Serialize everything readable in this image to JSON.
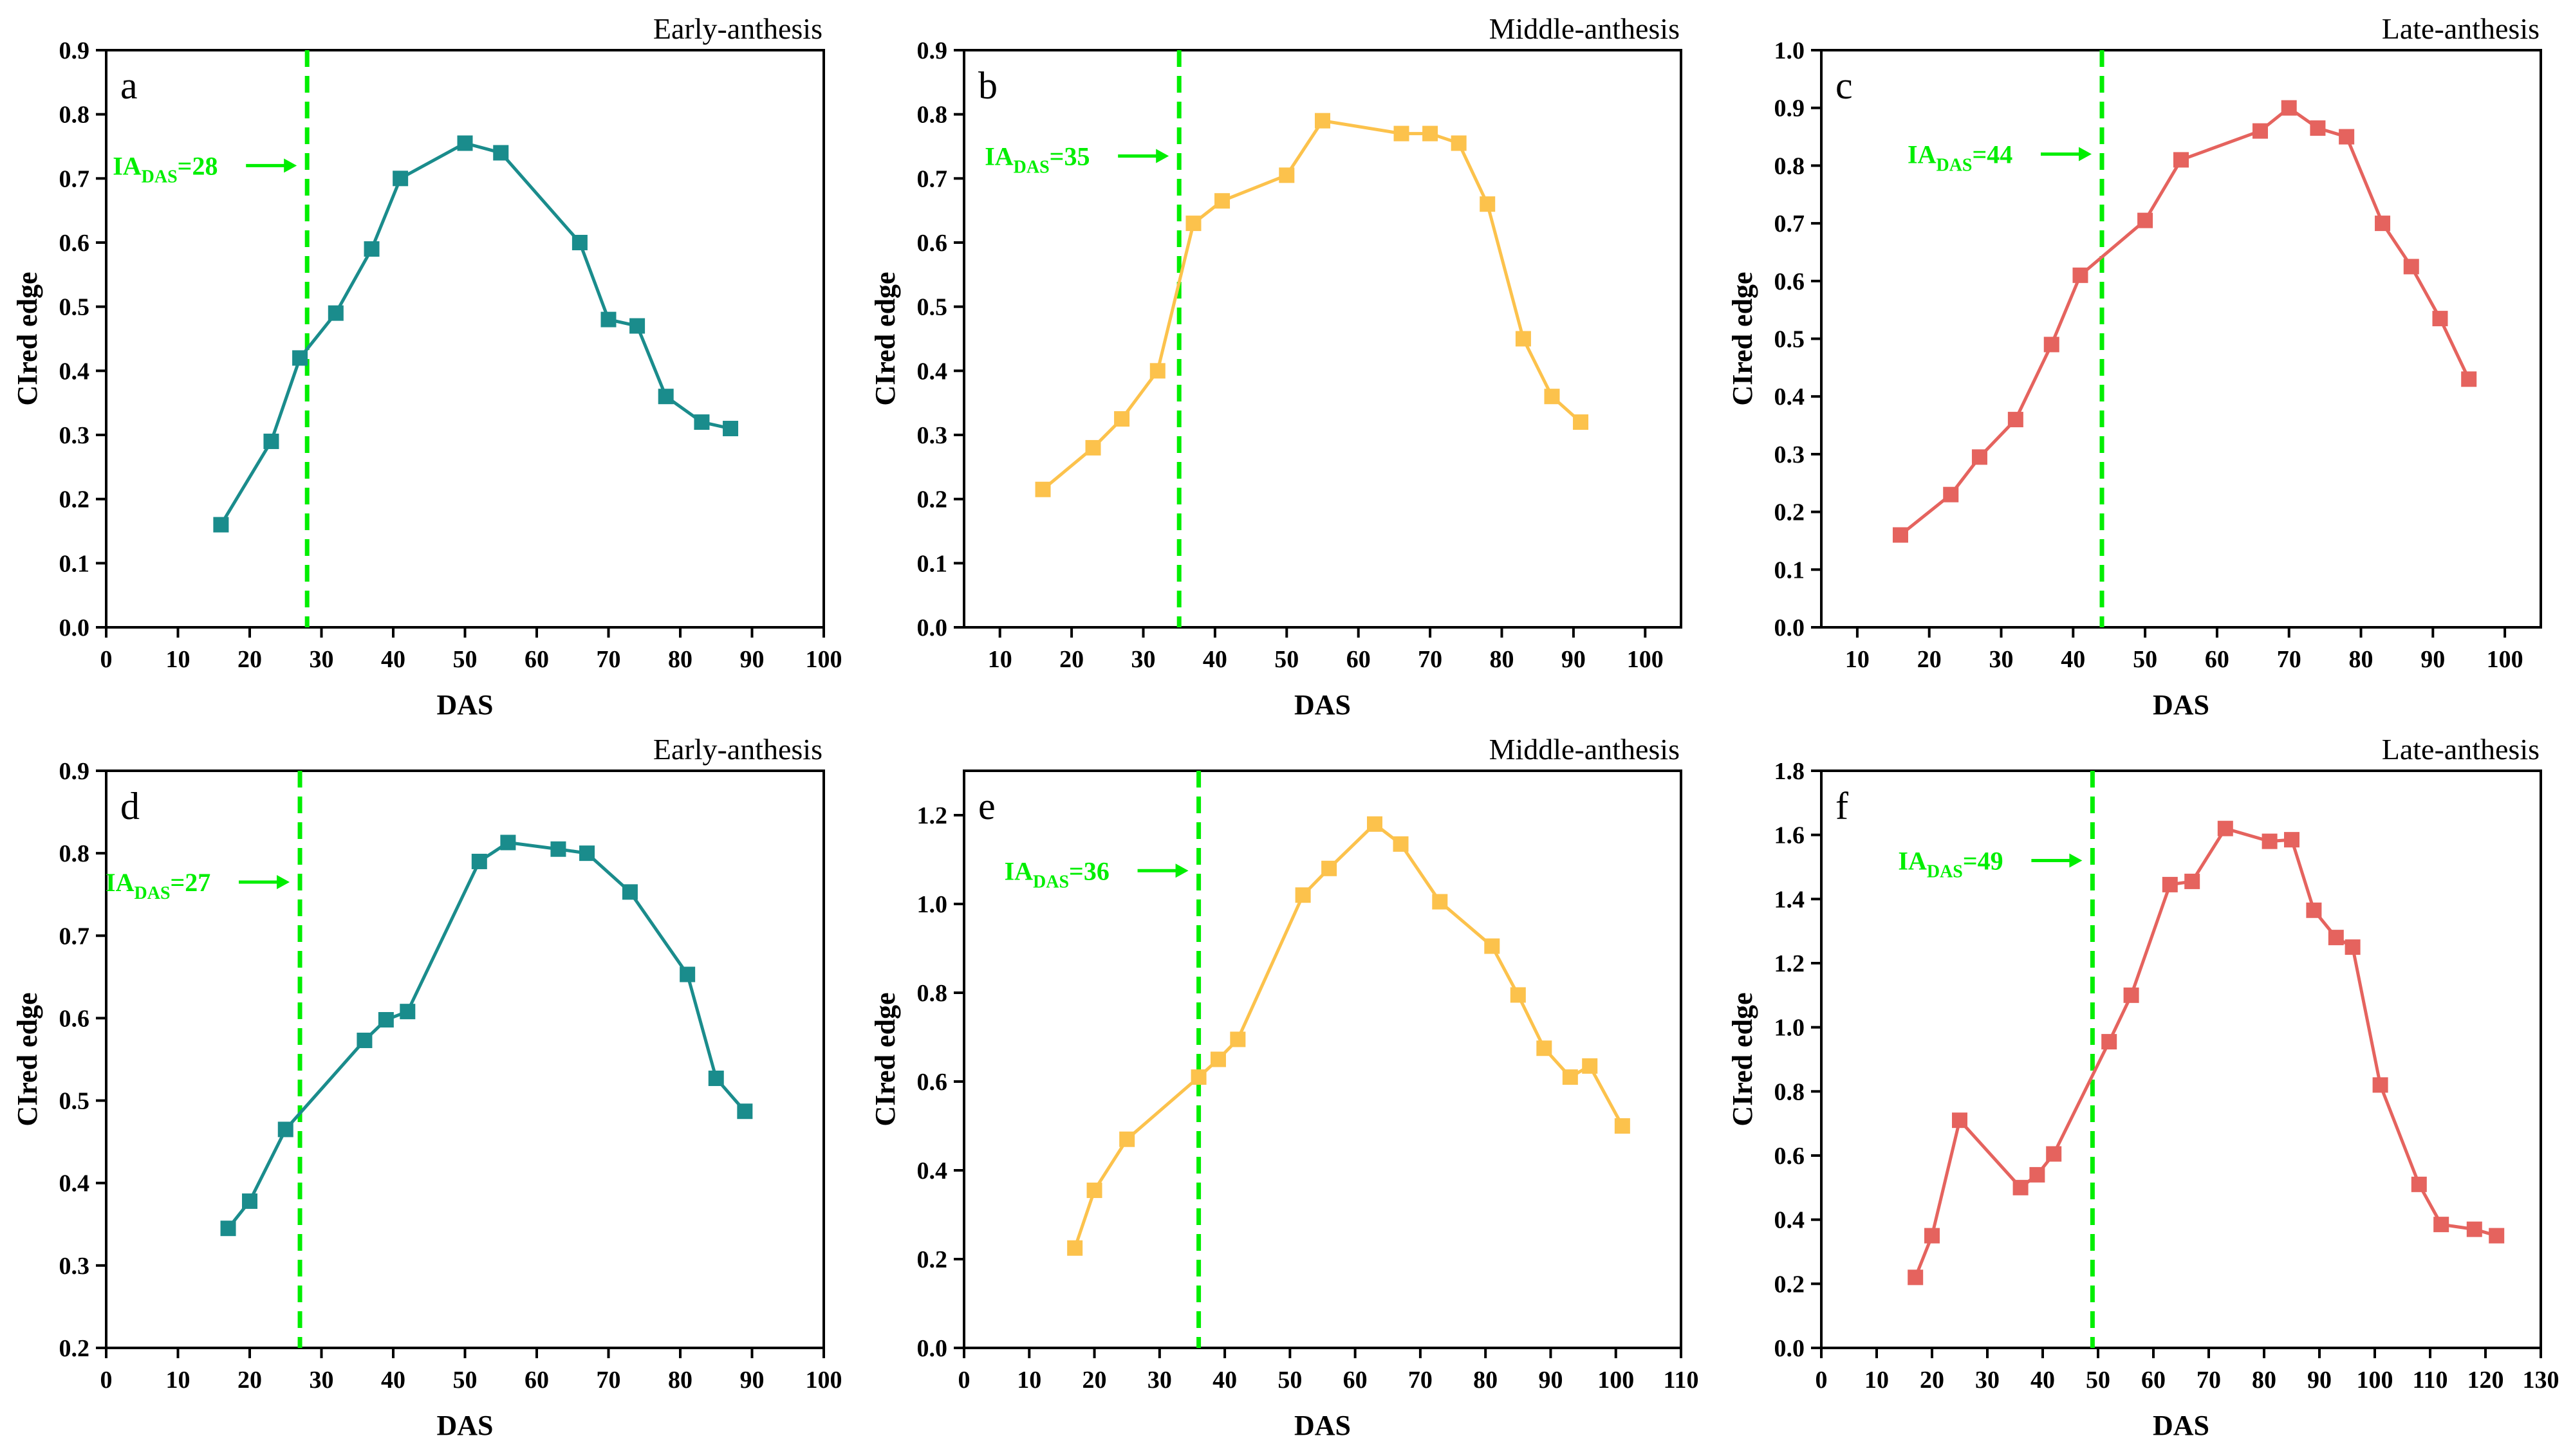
{
  "colors": {
    "teal": "#1a8c8c",
    "yellow": "#fcc24c",
    "red": "#e5635e",
    "green": "#00ee00"
  },
  "chart_data": [
    {
      "type": "line",
      "letter": "a",
      "title": "Early-anthesis",
      "color": "#1a8c8c",
      "xlabel": "DAS",
      "ylabel": "CIred edge",
      "xlim": [
        0,
        100
      ],
      "ylim": [
        0,
        0.9
      ],
      "xticks": [
        0,
        10,
        20,
        30,
        40,
        50,
        60,
        70,
        80,
        90,
        100
      ],
      "yticks": [
        0,
        0.1,
        0.2,
        0.3,
        0.4,
        0.5,
        0.6,
        0.7,
        0.8,
        0.9
      ],
      "ydecimals": 1,
      "ia_x": 28,
      "ia_label_main": "IA",
      "ia_label_sub": "DAS",
      "ia_label_value": "=28",
      "x": [
        16,
        23,
        27,
        32,
        37,
        41,
        50,
        55,
        66,
        70,
        74,
        78,
        83,
        87
      ],
      "y": [
        0.16,
        0.29,
        0.42,
        0.49,
        0.59,
        0.7,
        0.755,
        0.74,
        0.6,
        0.48,
        0.47,
        0.36,
        0.32,
        0.31
      ],
      "marker": "square",
      "grid": false
    },
    {
      "type": "line",
      "letter": "b",
      "title": "Middle-anthesis",
      "color": "#fcc24c",
      "xlabel": "DAS",
      "ylabel": "CIred edge",
      "xlim": [
        5,
        105
      ],
      "ylim": [
        0,
        0.9
      ],
      "xticks": [
        10,
        20,
        30,
        40,
        50,
        60,
        70,
        80,
        90,
        100
      ],
      "yticks": [
        0,
        0.1,
        0.2,
        0.3,
        0.4,
        0.5,
        0.6,
        0.7,
        0.8,
        0.9
      ],
      "ydecimals": 1,
      "ia_x": 35,
      "ia_label_main": "IA",
      "ia_label_sub": "DAS",
      "ia_label_value": "=35",
      "x": [
        16,
        23,
        27,
        32,
        37,
        41,
        50,
        55,
        66,
        70,
        74,
        78,
        83,
        87,
        91
      ],
      "y": [
        0.215,
        0.28,
        0.325,
        0.4,
        0.63,
        0.665,
        0.705,
        0.79,
        0.77,
        0.77,
        0.755,
        0.66,
        0.45,
        0.36,
        0.32
      ],
      "marker": "square",
      "grid": false
    },
    {
      "type": "line",
      "letter": "c",
      "title": "Late-anthesis",
      "color": "#e5635e",
      "xlabel": "DAS",
      "ylabel": "CIred edge",
      "xlim": [
        5,
        105
      ],
      "ylim": [
        0,
        1.0
      ],
      "xticks": [
        10,
        20,
        30,
        40,
        50,
        60,
        70,
        80,
        90,
        100
      ],
      "yticks": [
        0,
        0.1,
        0.2,
        0.3,
        0.4,
        0.5,
        0.6,
        0.7,
        0.8,
        0.9,
        1.0
      ],
      "ydecimals": 1,
      "ia_x": 44,
      "ia_label_main": "IA",
      "ia_label_sub": "DAS",
      "ia_label_value": "=44",
      "x": [
        16,
        23,
        27,
        32,
        37,
        41,
        50,
        55,
        66,
        70,
        74,
        78,
        83,
        87,
        91,
        95
      ],
      "y": [
        0.16,
        0.23,
        0.295,
        0.36,
        0.49,
        0.61,
        0.705,
        0.81,
        0.86,
        0.9,
        0.865,
        0.85,
        0.7,
        0.625,
        0.535,
        0.43
      ],
      "marker": "square",
      "grid": false
    },
    {
      "type": "line",
      "letter": "d",
      "title": "Early-anthesis",
      "color": "#1a8c8c",
      "xlabel": "DAS",
      "ylabel": "CIred edge",
      "xlim": [
        0,
        100
      ],
      "ylim": [
        0.2,
        0.9
      ],
      "xticks": [
        0,
        10,
        20,
        30,
        40,
        50,
        60,
        70,
        80,
        90,
        100
      ],
      "yticks": [
        0.2,
        0.3,
        0.4,
        0.5,
        0.6,
        0.7,
        0.8,
        0.9
      ],
      "ydecimals": 1,
      "ia_x": 27,
      "ia_label_main": "IA",
      "ia_label_sub": "DAS",
      "ia_label_value": "=27",
      "x": [
        17,
        20,
        25,
        36,
        39,
        42,
        52,
        56,
        63,
        67,
        73,
        81,
        85,
        89
      ],
      "y": [
        0.345,
        0.378,
        0.465,
        0.573,
        0.598,
        0.608,
        0.79,
        0.813,
        0.805,
        0.8,
        0.753,
        0.653,
        0.527,
        0.487
      ],
      "marker": "square",
      "grid": false
    },
    {
      "type": "line",
      "letter": "e",
      "title": "Middle-anthesis",
      "color": "#fcc24c",
      "xlabel": "DAS",
      "ylabel": "CIred edge",
      "xlim": [
        0,
        110
      ],
      "ylim": [
        0,
        1.3
      ],
      "xticks": [
        0,
        10,
        20,
        30,
        40,
        50,
        60,
        70,
        80,
        90,
        100,
        110
      ],
      "yticks": [
        0,
        0.2,
        0.4,
        0.6,
        0.8,
        1.0,
        1.2
      ],
      "ydecimals": 1,
      "ia_x": 36,
      "ia_label_main": "IA",
      "ia_label_sub": "DAS",
      "ia_label_value": "=36",
      "x": [
        17,
        20,
        25,
        36,
        39,
        42,
        52,
        56,
        63,
        67,
        73,
        81,
        85,
        89,
        93,
        96,
        101
      ],
      "y": [
        0.225,
        0.355,
        0.47,
        0.61,
        0.65,
        0.695,
        1.02,
        1.08,
        1.18,
        1.135,
        1.005,
        0.905,
        0.795,
        0.675,
        0.61,
        0.635,
        0.5
      ],
      "marker": "square",
      "grid": false
    },
    {
      "type": "line",
      "letter": "f",
      "title": "Late-anthesis",
      "color": "#e5635e",
      "xlabel": "DAS",
      "ylabel": "CIred edge",
      "xlim": [
        0,
        130
      ],
      "ylim": [
        0,
        1.8
      ],
      "xticks": [
        0,
        10,
        20,
        30,
        40,
        50,
        60,
        70,
        80,
        90,
        100,
        110,
        120,
        130
      ],
      "yticks": [
        0,
        0.2,
        0.4,
        0.6,
        0.8,
        1.0,
        1.2,
        1.4,
        1.6,
        1.8
      ],
      "ydecimals": 1,
      "ia_x": 49,
      "ia_label_main": "IA",
      "ia_label_sub": "DAS",
      "ia_label_value": "=49",
      "x": [
        17,
        20,
        25,
        36,
        39,
        42,
        52,
        56,
        63,
        67,
        73,
        81,
        85,
        89,
        93,
        96,
        101,
        108,
        112,
        118,
        122
      ],
      "y": [
        0.22,
        0.35,
        0.71,
        0.5,
        0.54,
        0.605,
        0.955,
        1.1,
        1.445,
        1.455,
        1.62,
        1.58,
        1.585,
        1.365,
        1.28,
        1.25,
        0.82,
        0.51,
        0.385,
        0.37,
        0.35
      ],
      "marker": "square",
      "grid": false
    }
  ]
}
